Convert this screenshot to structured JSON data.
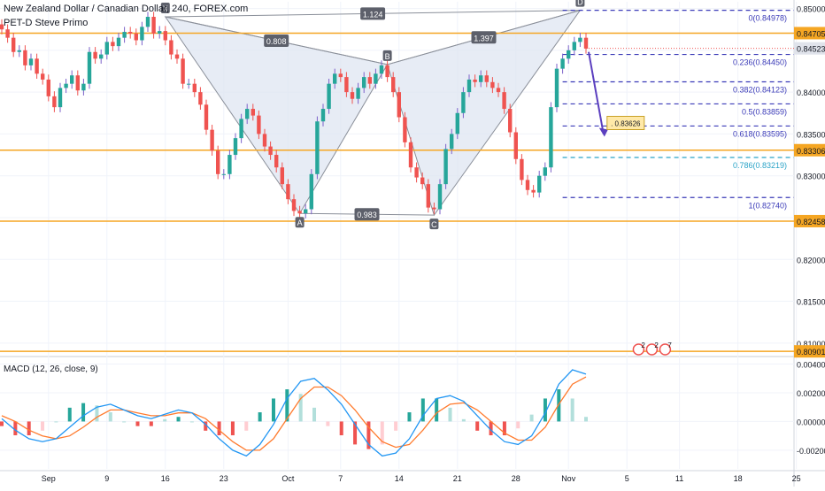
{
  "header": {
    "symbol_line": "New Zealand Dollar / Canadian Dollar, 240, FOREX.com",
    "indicator_line": "PET-D Steve Primo"
  },
  "colors": {
    "up": "#26a69a",
    "down": "#ef5350",
    "wick_up": "#7b61c9",
    "horizontal_line": "#f5a623",
    "fib_line": "#3b3bb8",
    "fib_cyan": "#2aa3c7",
    "pattern_fill": "#dfe6f1",
    "pattern_edge": "#8a8f99",
    "macd_line": "#2196f3",
    "signal_line": "#ff7b2e",
    "arrow": "#5b3fbf",
    "target_box": "#ffe9a8"
  },
  "chart_data": {
    "type": "candlestick",
    "title": "New Zealand Dollar / Canadian Dollar, 240, FOREX.com",
    "ylim": [
      0.8085,
      0.8508
    ],
    "yticks": [
      "0.85000",
      "0.84500",
      "0.84000",
      "0.83500",
      "0.83000",
      "0.82500",
      "0.82000",
      "0.81500",
      "0.81000"
    ],
    "ytick_values": [
      0.85,
      0.845,
      0.84,
      0.835,
      0.83,
      0.825,
      0.82,
      0.815,
      0.81
    ],
    "xticks": [
      "Sep",
      "9",
      "16",
      "23",
      "Oct",
      "7",
      "14",
      "21",
      "28",
      "Nov",
      "5",
      "11",
      "18",
      "25"
    ],
    "xtick_index": [
      8,
      18,
      28,
      38,
      49,
      58,
      68,
      78,
      88,
      97,
      107,
      116,
      126,
      136
    ],
    "n_bars": 140,
    "close_series": [
      0.8475,
      0.8465,
      0.8448,
      0.845,
      0.8432,
      0.844,
      0.8422,
      0.8415,
      0.8395,
      0.8382,
      0.8405,
      0.841,
      0.842,
      0.8402,
      0.841,
      0.8448,
      0.844,
      0.8445,
      0.846,
      0.8455,
      0.8465,
      0.8472,
      0.847,
      0.8462,
      0.8478,
      0.849,
      0.847,
      0.8473,
      0.8462,
      0.8445,
      0.844,
      0.841,
      0.841,
      0.84,
      0.8385,
      0.8355,
      0.833,
      0.8302,
      0.8302,
      0.8325,
      0.8345,
      0.8368,
      0.838,
      0.8372,
      0.835,
      0.8335,
      0.8325,
      0.831,
      0.829,
      0.8272,
      0.8258,
      0.8255,
      0.826,
      0.8302,
      0.8365,
      0.838,
      0.841,
      0.8422,
      0.8418,
      0.84,
      0.8392,
      0.8405,
      0.8418,
      0.841,
      0.8422,
      0.8432,
      0.8418,
      0.84,
      0.837,
      0.834,
      0.831,
      0.8298,
      0.829,
      0.8262,
      0.826,
      0.829,
      0.8332,
      0.835,
      0.8375,
      0.84,
      0.8415,
      0.8412,
      0.842,
      0.8412,
      0.8405,
      0.84,
      0.838,
      0.8352,
      0.832,
      0.8295,
      0.8283,
      0.828,
      0.83,
      0.831,
      0.8382,
      0.8428,
      0.844,
      0.845,
      0.846,
      0.8465,
      0.8452
    ],
    "levels": [
      {
        "label": "0.84705",
        "value": 0.84705
      },
      {
        "label": "0.83306",
        "value": 0.83306
      },
      {
        "label": "0.82458",
        "value": 0.82458
      },
      {
        "label": "0.80901",
        "value": 0.80901
      }
    ],
    "current_price": {
      "label": "0.84523",
      "value": 0.84523
    },
    "fib_levels": [
      {
        "label": "0(0.84978)",
        "value": 0.84978
      },
      {
        "label": "0.236(0.84450)",
        "value": 0.8445
      },
      {
        "label": "0.382(0.84123)",
        "value": 0.84123
      },
      {
        "label": "0.5(0.83859)",
        "value": 0.83859
      },
      {
        "label": "0.618(0.83595)",
        "value": 0.83595
      },
      {
        "label": "0.786(0.83219)",
        "value": 0.83219
      },
      {
        "label": "1(0.82740)",
        "value": 0.8274
      }
    ],
    "pattern_points": [
      {
        "label": "X",
        "index": 28,
        "value": 0.849
      },
      {
        "label": "A",
        "index": 51,
        "value": 0.8255
      },
      {
        "label": "B",
        "index": 66,
        "value": 0.8433
      },
      {
        "label": "C",
        "index": 74,
        "value": 0.8253
      },
      {
        "label": "D",
        "index": 99,
        "value": 0.84978
      }
    ],
    "ratio_labels": [
      "0.808",
      "1.124",
      "0.983",
      "1.397"
    ],
    "target_label": "0.83626",
    "target_value": 0.83626,
    "macd": {
      "title": "MACD (12, 26, close, 9)",
      "ylim": [
        -0.0033,
        0.0044
      ],
      "yticks": [
        "0.00400",
        "0.00200",
        "0.00000",
        "-0.00200"
      ],
      "ytick_values": [
        0.004,
        0.002,
        0.0,
        -0.002
      ],
      "macd_series": [
        0.0002,
        -0.0006,
        -0.0012,
        -0.0014,
        -0.0012,
        -0.0004,
        0.0004,
        0.001,
        0.0012,
        0.0008,
        0.0004,
        0.0002,
        0.0005,
        0.0008,
        0.0006,
        -0.0002,
        -0.0012,
        -0.002,
        -0.0024,
        -0.0016,
        -0.0002,
        0.0016,
        0.0028,
        0.003,
        0.0022,
        0.0012,
        -0.0002,
        -0.0016,
        -0.0024,
        -0.0022,
        -0.0012,
        0.0004,
        0.0016,
        0.0018,
        0.0014,
        0.0004,
        -0.0006,
        -0.0014,
        -0.0016,
        -0.001,
        0.0006,
        0.0026,
        0.0036,
        0.0033
      ],
      "signal_series": [
        0.0004,
        0.0,
        -0.0006,
        -0.001,
        -0.0012,
        -0.001,
        -0.0004,
        0.0003,
        0.0008,
        0.0008,
        0.0006,
        0.0004,
        0.0004,
        0.0006,
        0.0006,
        0.0002,
        -0.0006,
        -0.0014,
        -0.002,
        -0.002,
        -0.0012,
        0.0002,
        0.0016,
        0.0024,
        0.0024,
        0.0018,
        0.0008,
        -0.0004,
        -0.0014,
        -0.0018,
        -0.0016,
        -0.0006,
        0.0006,
        0.0012,
        0.0013,
        0.0008,
        0.0,
        -0.0008,
        -0.0013,
        -0.0013,
        -0.0004,
        0.0012,
        0.0026,
        0.0031
      ]
    },
    "event_badge_counts": [
      "2",
      "2",
      "7"
    ]
  }
}
